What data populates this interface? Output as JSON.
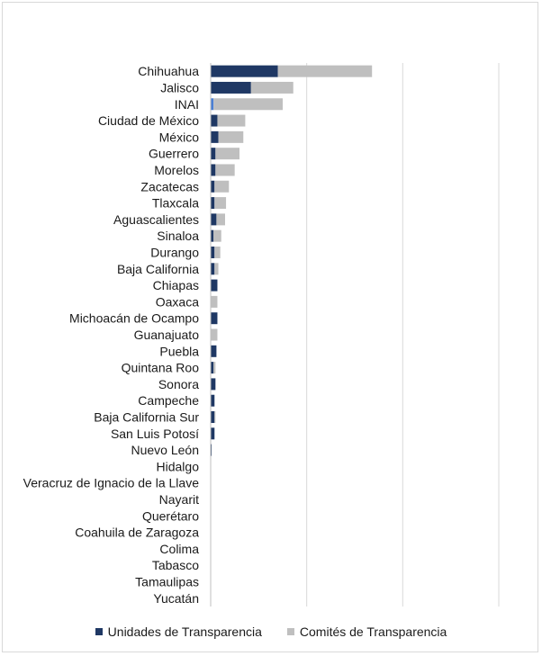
{
  "chart_data": {
    "type": "bar",
    "orientation": "horizontal",
    "stacked": true,
    "grid": true,
    "legend_position": "bottom",
    "xlim": [
      0,
      300
    ],
    "categories": [
      "Chihuahua",
      "Jalisco",
      "INAI",
      "Ciudad de México",
      "México",
      "Guerrero",
      "Morelos",
      "Zacatecas",
      "Tlaxcala",
      "Aguascalientes",
      "Sinaloa",
      "Durango",
      "Baja California",
      "Chiapas",
      "Oaxaca",
      "Michoacán de Ocampo",
      "Guanajuato",
      "Puebla",
      "Quintana Roo",
      "Sonora",
      "Campeche",
      "Baja California Sur",
      "San Luis Potosí",
      "Nuevo León",
      "Hidalgo",
      "Veracruz de Ignacio de la Llave",
      "Nayarit",
      "Querétaro",
      "Coahuila de Zaragoza",
      "Colima",
      "Tabasco",
      "Tamaulipas",
      "Yucatán"
    ],
    "series": [
      {
        "name": "Unidades de Transparencia",
        "color": "#1f3864",
        "values": [
          70,
          42,
          3,
          7,
          8,
          5,
          5,
          4,
          4,
          6,
          3,
          4,
          4,
          7,
          0,
          7,
          0,
          6,
          3,
          5,
          4,
          4,
          4,
          1,
          0,
          0,
          0,
          0,
          0,
          0,
          0,
          0,
          0
        ]
      },
      {
        "name": "Comités de Transparencia",
        "color": "#bfbfbf",
        "values": [
          98,
          44,
          72,
          29,
          26,
          25,
          20,
          15,
          12,
          9,
          8,
          6,
          4,
          0,
          7,
          0,
          7,
          0,
          2,
          0,
          0,
          1,
          0,
          0,
          0,
          0,
          0,
          0,
          0,
          0,
          0,
          0,
          0
        ]
      }
    ],
    "highlight": {
      "category": "INAI",
      "series": "Unidades de Transparencia",
      "color": "#4a7fd4"
    }
  }
}
